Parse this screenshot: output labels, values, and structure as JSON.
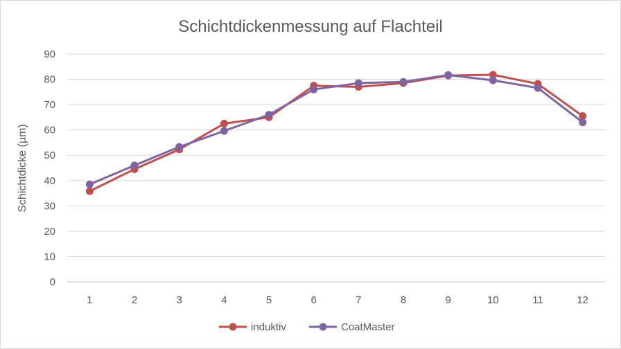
{
  "chart_data": {
    "type": "line",
    "title": "Schichtdickenmessung  auf Flachteil",
    "ylabel": "Schichtdicke (µm)",
    "xlabel": "",
    "categories": [
      "1",
      "2",
      "3",
      "4",
      "5",
      "6",
      "7",
      "8",
      "9",
      "10",
      "11",
      "12"
    ],
    "ylim": [
      0,
      90
    ],
    "yticks": [
      "0",
      "10",
      "20",
      "30",
      "40",
      "50",
      "60",
      "70",
      "80",
      "90"
    ],
    "grid": true,
    "legend": "bottom",
    "series": [
      {
        "name": "induktiv",
        "color": "#c0504d",
        "values": [
          35.8,
          44.5,
          52.3,
          62.5,
          65.0,
          77.5,
          77.0,
          78.5,
          81.5,
          81.8,
          78.2,
          65.5
        ]
      },
      {
        "name": "CoatMaster",
        "color": "#8064a2",
        "values": [
          38.5,
          46.0,
          53.3,
          59.6,
          66.0,
          76.0,
          78.5,
          79.0,
          81.7,
          79.6,
          76.6,
          63.0
        ]
      }
    ]
  }
}
